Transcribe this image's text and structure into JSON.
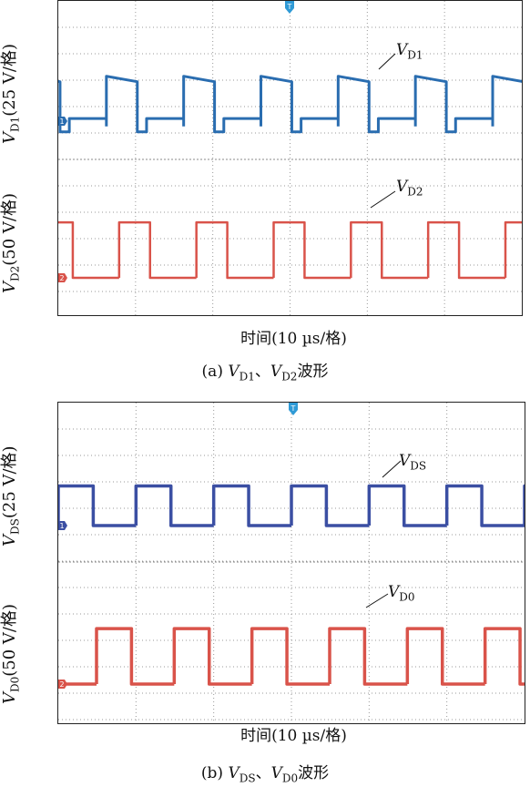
{
  "panels": [
    {
      "id": "a",
      "caption": {
        "prefix": "(a) ",
        "v1": "V",
        "s1": "D1",
        "sep": "、",
        "v2": "V",
        "s2": "D2",
        "suffix": "波形"
      },
      "xlabel": "时间(10 µs/格)",
      "ch1_label": {
        "v": "V",
        "sub": "D1",
        "rest": "(25 V/格)"
      },
      "ch2_label": {
        "v": "V",
        "sub": "D2",
        "rest": "(50 V/格)"
      },
      "ch1_annot": {
        "v": "V",
        "sub": "D1"
      },
      "ch2_annot": {
        "v": "V",
        "sub": "D2"
      }
    },
    {
      "id": "b",
      "caption": {
        "prefix": "(b) ",
        "v1": "V",
        "s1": "DS",
        "sep": "、",
        "v2": "V",
        "s2": "D0",
        "suffix": "波形"
      },
      "xlabel": "时间(10 µs/格)",
      "ch1_label": {
        "v": "V",
        "sub": "DS",
        "rest": "(25 V/格)"
      },
      "ch2_label": {
        "v": "V",
        "sub": "D0",
        "rest": "(50 V/格)"
      },
      "ch1_annot": {
        "v": "V",
        "sub": "DS"
      },
      "ch2_annot": {
        "v": "V",
        "sub": "D0"
      }
    }
  ],
  "chart_data": [
    {
      "type": "line",
      "title": "(a) VD1、VD2波形",
      "xlabel": "时间(10 µs/格)",
      "time_per_div_us": 10,
      "x_divisions": 6,
      "period_us": 10,
      "series": [
        {
          "name": "VD1",
          "scale": "25 V/格",
          "color": "#2a6db0",
          "levels_div": {
            "high": 1.7,
            "low": -0.2,
            "step": 0.1
          },
          "duty_high": 0.4
        },
        {
          "name": "VD2",
          "scale": "50 V/格",
          "color": "#d9534a",
          "levels_div": {
            "high": 2.1,
            "low": 0.0
          },
          "duty_high": 0.4
        }
      ],
      "markers": {
        "trigger": "T",
        "ch1": "1",
        "ch2": "2"
      }
    },
    {
      "type": "line",
      "title": "(b) VDS、VD0波形",
      "xlabel": "时间(10 µs/格)",
      "time_per_div_us": 10,
      "x_divisions": 6,
      "period_us": 10,
      "series": [
        {
          "name": "VDS",
          "scale": "25 V/格",
          "color": "#3b4fa3",
          "levels_div": {
            "high": 1.5,
            "low": 0.0
          },
          "duty_high": 0.45
        },
        {
          "name": "VD0",
          "scale": "50 V/格",
          "color": "#d9534a",
          "levels_div": {
            "high": 2.1,
            "low": 0.0
          },
          "duty_high": 0.45
        }
      ],
      "markers": {
        "trigger": "T",
        "ch1": "1",
        "ch2": "2"
      }
    }
  ]
}
